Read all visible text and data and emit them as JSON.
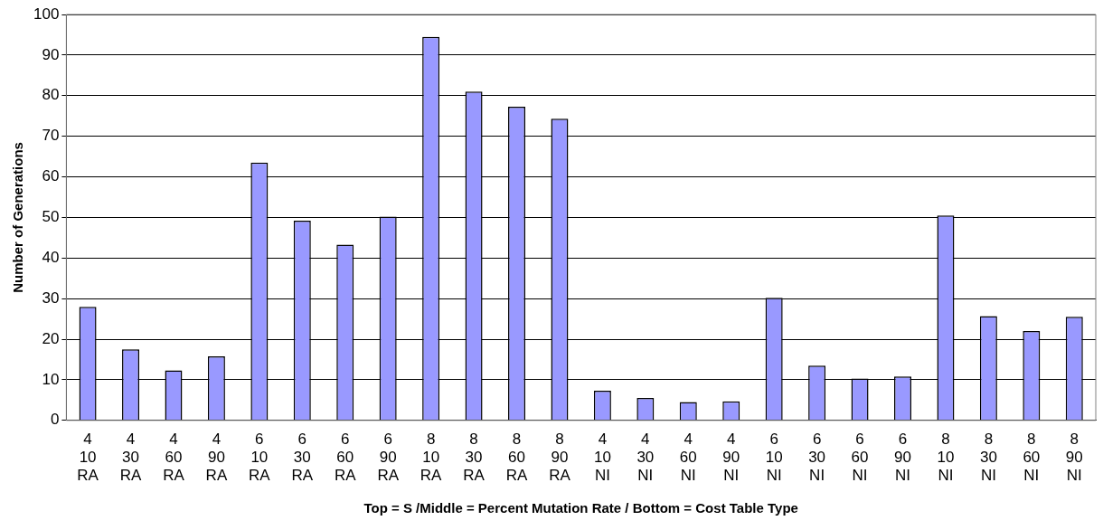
{
  "chart_data": {
    "type": "bar",
    "xlabel": "Top = S /Middle = Percent Mutation Rate / Bottom = Cost Table Type",
    "ylabel": "Number of Generations",
    "categories": [
      "4\n10\nRA",
      "4\n30\nRA",
      "4\n60\nRA",
      "4\n90\nRA",
      "6\n10\nRA",
      "6\n30\nRA",
      "6\n60\nRA",
      "6\n90\nRA",
      "8\n10\nRA",
      "8\n30\nRA",
      "8\n60\nRA",
      "8\n90\nRA",
      "4\n10\nNI",
      "4\n30\nNI",
      "4\n60\nNI",
      "4\n90\nNI",
      "6\n10\nNI",
      "6\n30\nNI",
      "6\n60\nNI",
      "6\n90\nNI",
      "8\n10\nNI",
      "8\n30\nNI",
      "8\n60\nNI",
      "8\n90\nNI"
    ],
    "values": [
      28,
      17.5,
      12.3,
      15.8,
      63.5,
      49.2,
      43.3,
      50.2,
      94.5,
      81,
      77.3,
      74.3,
      7.3,
      5.5,
      4.5,
      4.7,
      30.2,
      13.5,
      10.3,
      10.8,
      50.5,
      25.7,
      22,
      25.5
    ],
    "color": "#9999ff",
    "ylim": [
      0,
      100
    ],
    "yticks": [
      0,
      10,
      20,
      30,
      40,
      50,
      60,
      70,
      80,
      90,
      100
    ],
    "grid": "y",
    "legend": false
  }
}
